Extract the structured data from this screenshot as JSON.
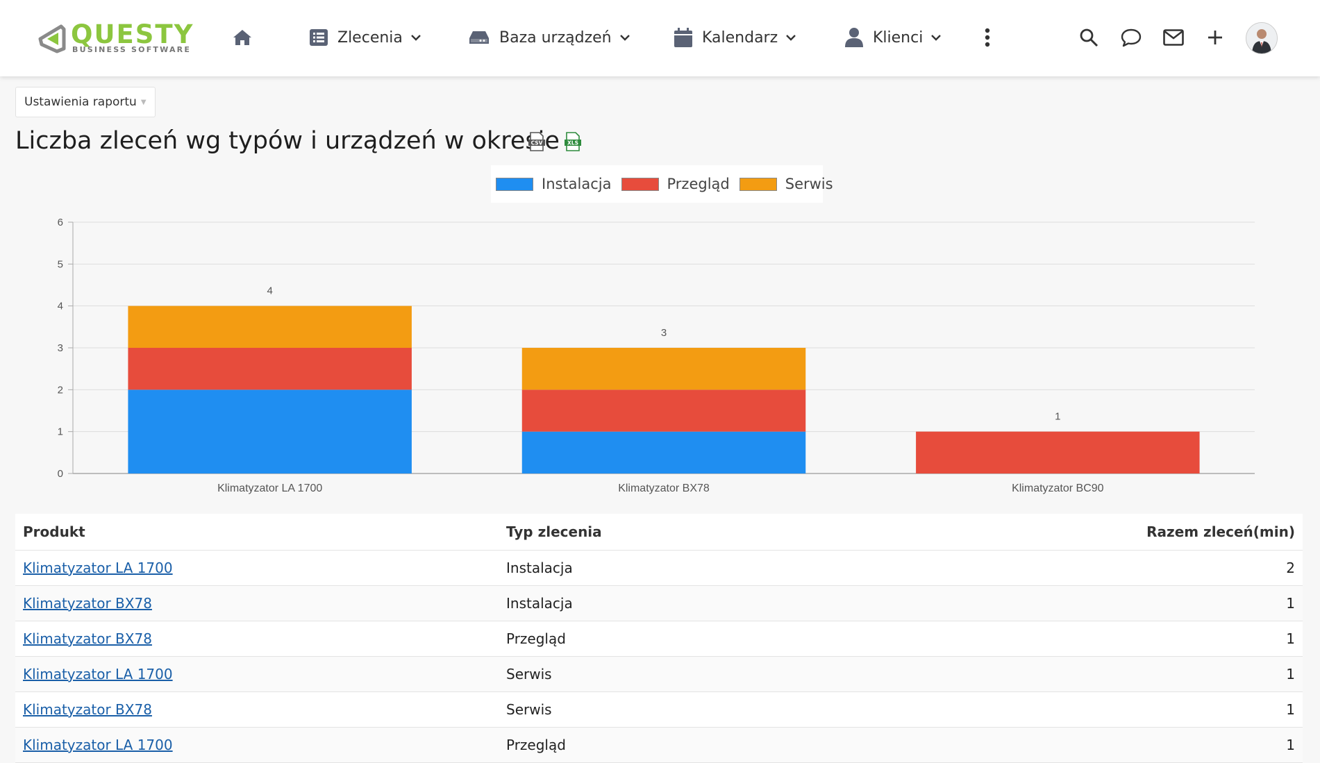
{
  "app": {
    "logo_word": "QUESTY",
    "logo_sub": "BUSINESS SOFTWARE"
  },
  "nav": {
    "home_icon": "home-icon",
    "items": [
      {
        "label": "Zlecenia",
        "icon": "list-icon"
      },
      {
        "label": "Baza urządzeń",
        "icon": "drive-icon"
      },
      {
        "label": "Kalendarz",
        "icon": "calendar-icon"
      },
      {
        "label": "Klienci",
        "icon": "user-icon"
      }
    ],
    "right_icons": [
      "more-vertical-icon",
      "search-icon",
      "chat-icon",
      "mail-icon",
      "plus-icon",
      "avatar"
    ]
  },
  "report": {
    "settings_label": "Ustawienia raportu",
    "title": "Liczba zleceń wg typów i urządzeń w okresie",
    "export_csv_icon": "csv-export-icon",
    "export_xls_icon": "xls-export-icon"
  },
  "colors": {
    "instalacja": "#1f8ef1",
    "przeglad": "#e74c3c",
    "serwis": "#f39c12",
    "brand_green": "#8cc63f"
  },
  "chart_data": {
    "type": "bar",
    "stacked": true,
    "categories": [
      "Klimatyzator LA 1700",
      "Klimatyzator BX78",
      "Klimatyzator BC90"
    ],
    "series": [
      {
        "name": "Instalacja",
        "values": [
          2,
          1,
          0
        ],
        "color": "#1f8ef1"
      },
      {
        "name": "Przegląd",
        "values": [
          1,
          1,
          1
        ],
        "color": "#e74c3c"
      },
      {
        "name": "Serwis",
        "values": [
          1,
          1,
          0
        ],
        "color": "#f39c12"
      }
    ],
    "totals": [
      4,
      3,
      1
    ],
    "ylim": [
      0,
      6
    ],
    "yticks": [
      0,
      1,
      2,
      3,
      4,
      5,
      6
    ],
    "grid": true,
    "legend": "top-center"
  },
  "table": {
    "headers": [
      "Produkt",
      "Typ zlecenia",
      "Razem zleceń(min)"
    ],
    "rows": [
      {
        "product": "Klimatyzator LA 1700",
        "type": "Instalacja",
        "total": "2"
      },
      {
        "product": "Klimatyzator BX78",
        "type": "Instalacja",
        "total": "1"
      },
      {
        "product": "Klimatyzator BX78",
        "type": "Przegląd",
        "total": "1"
      },
      {
        "product": "Klimatyzator LA 1700",
        "type": "Serwis",
        "total": "1"
      },
      {
        "product": "Klimatyzator BX78",
        "type": "Serwis",
        "total": "1"
      },
      {
        "product": "Klimatyzator LA 1700",
        "type": "Przegląd",
        "total": "1"
      }
    ]
  }
}
